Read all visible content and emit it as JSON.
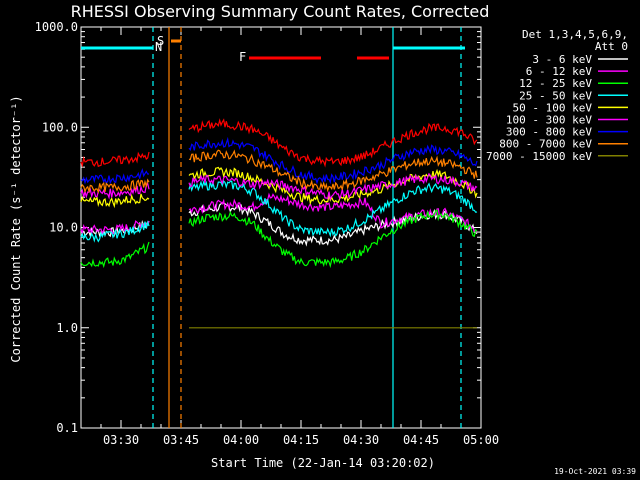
{
  "chart_data": {
    "type": "line",
    "title": "RHESSI Observing Summary Count Rates, Corrected",
    "xlabel": "Start Time (22-Jan-14 03:20:02)",
    "ylabel": "Corrected Count Rate (s⁻¹ detector⁻¹)",
    "y_scale": "log",
    "ylim": [
      0.1,
      1000
    ],
    "xlim_minutes": [
      0,
      100
    ],
    "x_ticks": [
      {
        "t": 10,
        "label": "03:30"
      },
      {
        "t": 25,
        "label": "03:45"
      },
      {
        "t": 40,
        "label": "04:00"
      },
      {
        "t": 55,
        "label": "04:15"
      },
      {
        "t": 70,
        "label": "04:30"
      },
      {
        "t": 85,
        "label": "04:45"
      },
      {
        "t": 100,
        "label": "05:00"
      }
    ],
    "y_ticks": [
      {
        "v": 1000,
        "label": "1000.0"
      },
      {
        "v": 100,
        "label": "100.0"
      },
      {
        "v": 10,
        "label": "10.0"
      },
      {
        "v": 1,
        "label": "1.0"
      },
      {
        "v": 0.1,
        "label": "0.1"
      }
    ],
    "legend_header": [
      "Det 1,3,4,5,6,9,",
      "Att 0"
    ],
    "x": [
      0,
      4,
      8,
      12,
      17,
      20,
      27,
      31,
      35,
      39,
      43,
      47,
      51,
      55,
      59,
      63,
      67,
      71,
      75,
      79,
      83,
      87,
      91,
      95,
      99
    ],
    "series": [
      {
        "name": "3 - 6 keV",
        "color": "#ffffff",
        "values": [
          9,
          9,
          9,
          9.5,
          11,
          null,
          14,
          15,
          16,
          16,
          14,
          11,
          8.5,
          7.5,
          7.5,
          7.5,
          8.2,
          9.5,
          10.5,
          11.5,
          12.5,
          13.5,
          13.5,
          11.5,
          9
        ]
      },
      {
        "name": "6 - 12 keV",
        "color": "#ff00ff",
        "values": [
          9.5,
          9.5,
          9.5,
          10,
          11.5,
          null,
          15,
          16,
          17,
          17,
          16,
          20,
          19,
          17,
          16,
          16,
          17,
          18,
          11,
          12,
          13,
          14,
          14,
          12,
          9.5
        ]
      },
      {
        "name": "12 - 25 keV",
        "color": "#00ff00",
        "values": [
          4.5,
          4.5,
          4.5,
          5,
          6.5,
          null,
          11,
          12.5,
          13,
          13,
          11,
          7.5,
          5.5,
          4.5,
          4.5,
          4.5,
          5,
          6,
          8,
          10,
          12,
          13.5,
          13.5,
          11,
          8.5
        ]
      },
      {
        "name": "25 - 50 keV",
        "color": "#00ffff",
        "values": [
          8,
          8,
          8.5,
          9,
          11,
          null,
          24,
          26,
          27,
          26,
          23,
          17,
          12,
          9.5,
          9,
          9,
          10,
          12,
          15,
          19,
          23,
          25,
          24,
          20,
          15
        ]
      },
      {
        "name": "50 - 100 keV",
        "color": "#ffff00",
        "values": [
          18,
          18,
          18,
          19,
          20,
          null,
          33,
          35,
          36,
          35,
          31,
          27,
          23,
          20,
          19,
          19,
          20,
          22,
          24,
          28,
          31,
          34,
          33,
          28,
          22
        ]
      },
      {
        "name": "100 - 300 keV",
        "color": "#ff00ff",
        "values": [
          22,
          22,
          22,
          23,
          25,
          null,
          28,
          30,
          30,
          29,
          27,
          28,
          26,
          24,
          22,
          21,
          22,
          24,
          26,
          28,
          30,
          31,
          30,
          28,
          24
        ]
      },
      {
        "name": "300 - 800 keV",
        "color": "#0000ff",
        "values": [
          30,
          30,
          31,
          32,
          35,
          null,
          62,
          68,
          70,
          68,
          62,
          50,
          40,
          34,
          31,
          31,
          33,
          37,
          42,
          50,
          57,
          60,
          58,
          52,
          42
        ]
      },
      {
        "name": "800 - 7000 keV",
        "color": "#ff8000",
        "values": [
          25,
          25,
          25,
          26,
          28,
          null,
          48,
          52,
          54,
          52,
          47,
          40,
          33,
          28,
          25,
          25,
          27,
          30,
          34,
          39,
          44,
          46,
          44,
          40,
          33
        ]
      },
      {
        "name": "7000 - 15000 keV",
        "color": "#808000",
        "values": [
          null,
          null,
          null,
          null,
          null,
          null,
          1.0,
          1.0,
          1.0,
          1.0,
          1.0,
          1.0,
          1.0,
          1.0,
          1.0,
          1.0,
          1.0,
          1.0,
          1.0,
          1.0,
          1.0,
          1.0,
          1.0,
          1.0,
          1.0
        ]
      },
      {
        "name": "red-top",
        "color": "#ff0000",
        "values": [
          45,
          45,
          46,
          48,
          52,
          null,
          95,
          103,
          108,
          104,
          95,
          78,
          60,
          50,
          46,
          45,
          47,
          52,
          62,
          75,
          88,
          97,
          98,
          90,
          70
        ]
      }
    ],
    "flags": [
      {
        "label": "S",
        "color": "#ff8000",
        "t_start": 22.5,
        "t_end": 25
      },
      {
        "label": "N",
        "color": "#00ffff",
        "t_start": 0,
        "t_end": 18
      },
      {
        "label": "N",
        "color": "#00ffff",
        "t_start": 78,
        "t_end": 96
      },
      {
        "label": "F",
        "color": "#ff0000",
        "t_start": 42,
        "t_end": 60
      },
      {
        "label": "F",
        "color": "#ff0000",
        "t_start": 69,
        "t_end": 77
      }
    ],
    "vlines": [
      {
        "t": 18,
        "color": "#00ffff",
        "dashed": true
      },
      {
        "t": 22,
        "color": "#ff8000",
        "dashed": false
      },
      {
        "t": 25,
        "color": "#ff8000",
        "dashed": true
      },
      {
        "t": 78,
        "color": "#00ffff",
        "dashed": false
      },
      {
        "t": 95,
        "color": "#00ffff",
        "dashed": true
      }
    ]
  },
  "timestamp": "19-Oct-2021 03:39"
}
